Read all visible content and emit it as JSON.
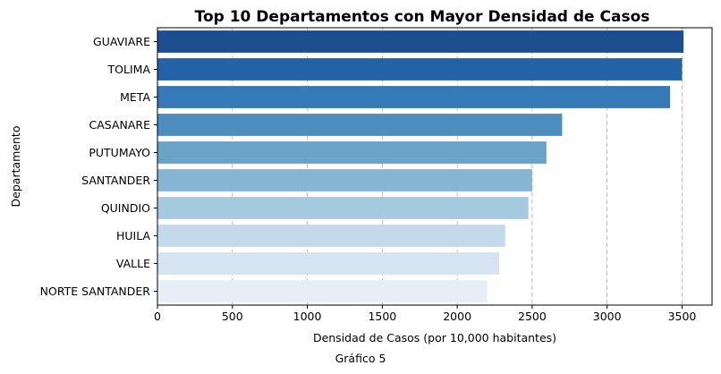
{
  "chart_data": {
    "type": "bar",
    "orientation": "horizontal",
    "title": "Top 10 Departamentos con Mayor Densidad de Casos",
    "xlabel": "Densidad de Casos (por 10,000 habitantes)",
    "ylabel": "Departamento",
    "xlim": [
      0,
      3700
    ],
    "xticks": [
      0,
      500,
      1000,
      1500,
      2000,
      2500,
      3000,
      3500
    ],
    "grid": "x-dashed",
    "categories": [
      "GUAVIARE",
      "TOLIMA",
      "META",
      "CASANARE",
      "PUTUMAYO",
      "SANTANDER",
      "QUINDIO",
      "HUILA",
      "VALLE",
      "NORTE SANTANDER"
    ],
    "values": [
      3510,
      3500,
      3420,
      2700,
      2595,
      2500,
      2475,
      2320,
      2280,
      2200
    ],
    "colors": [
      "#1c4f8f",
      "#2163a6",
      "#3679b7",
      "#4d8ebf",
      "#6aa3c8",
      "#86b6d3",
      "#a5c9de",
      "#c4daeb",
      "#d6e3f1",
      "#e6eef8"
    ]
  },
  "caption": "Gráfico 5"
}
